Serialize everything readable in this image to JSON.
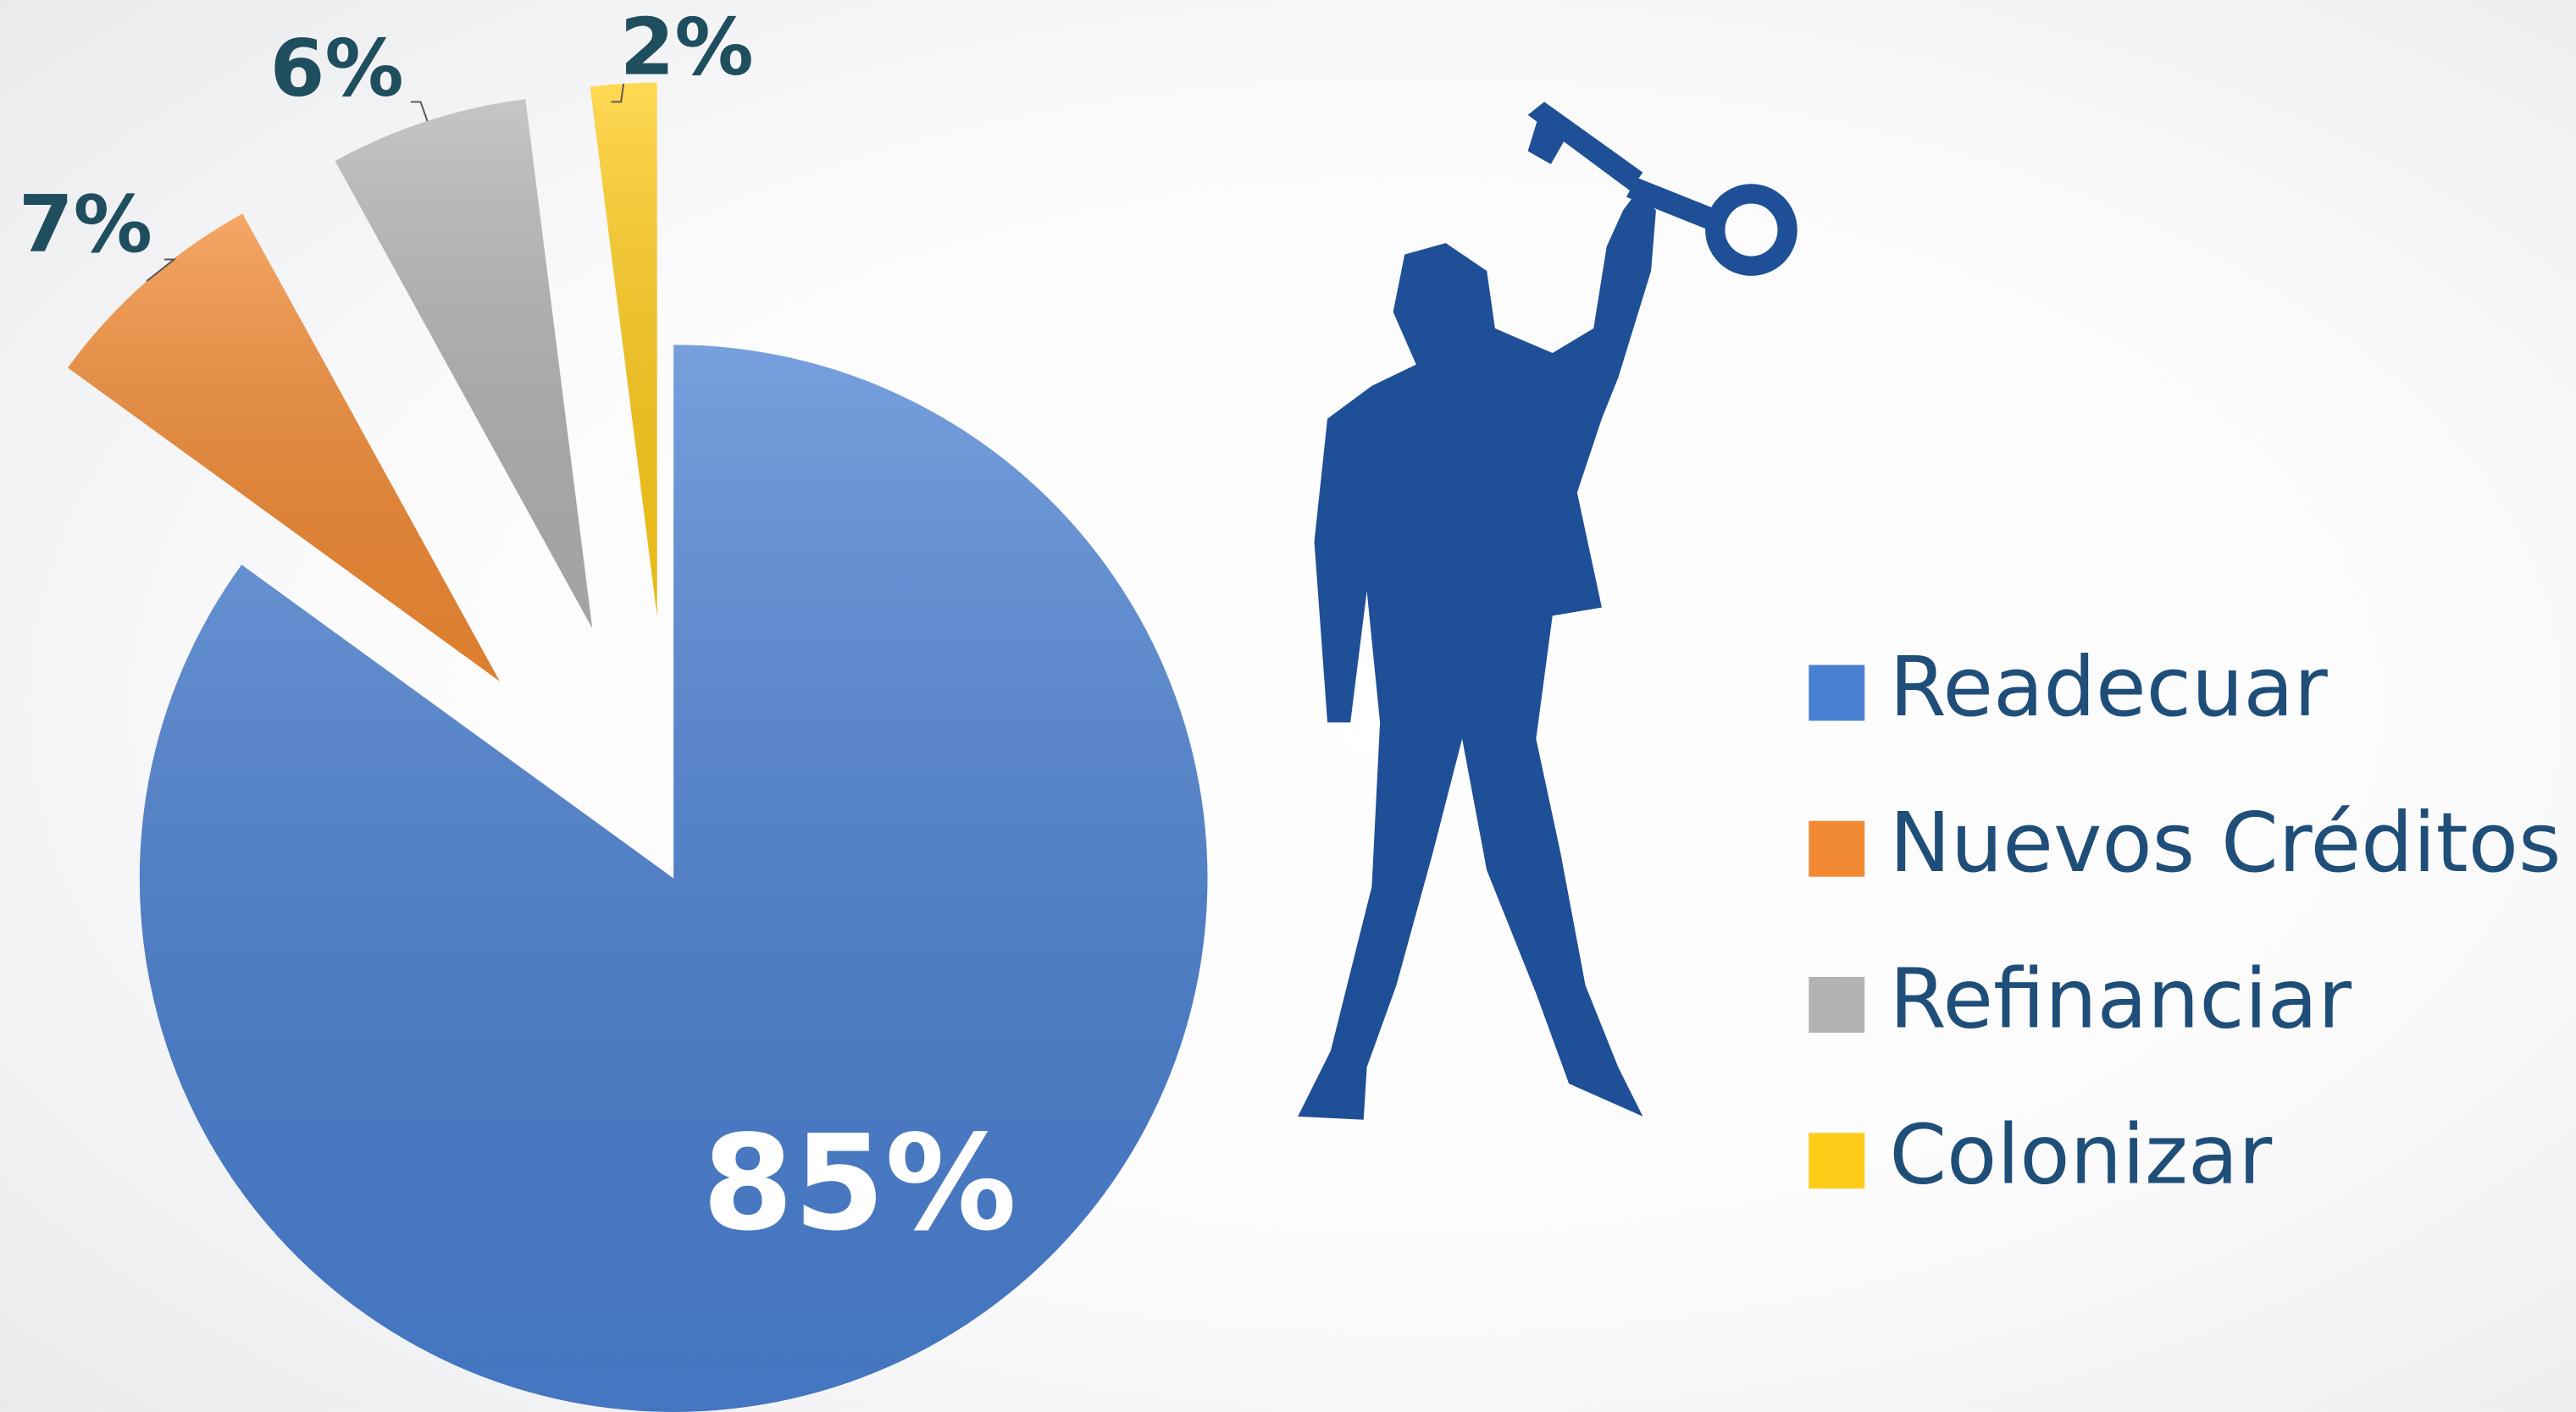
{
  "chart_data": {
    "type": "pie",
    "categories": [
      "Readecuar",
      "Nuevos Créditos",
      "Refinanciar",
      "Colonizar"
    ],
    "values": [
      85,
      7,
      6,
      2
    ],
    "value_labels": [
      "85%",
      "7%",
      "6%",
      "2%"
    ],
    "colors": [
      "#4a80d2",
      "#f28a33",
      "#b3b3b3",
      "#ffcc1a"
    ],
    "legend": "right"
  }
}
